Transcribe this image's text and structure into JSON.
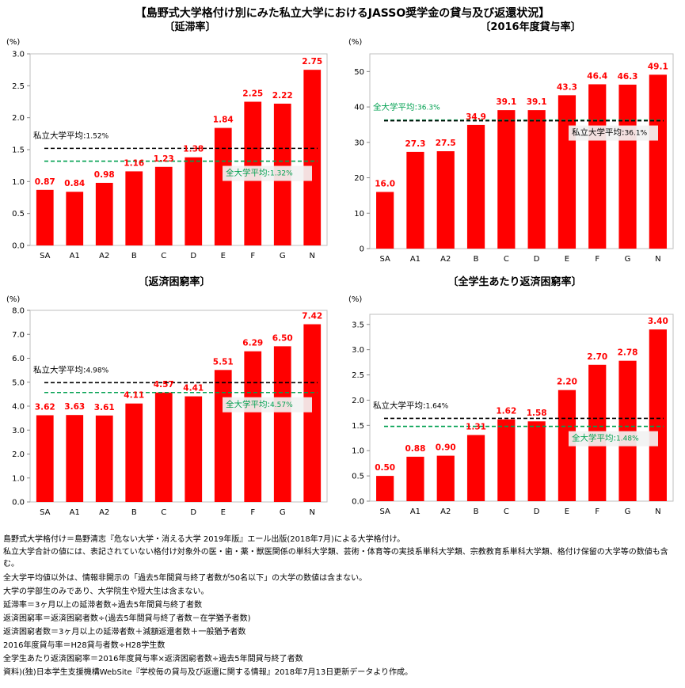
{
  "main_title": "【島野式大学格付け別にみた私立大学におけるJASSO奨学金の貸与及び返還状況】",
  "unit_label": "(%)",
  "notes": [
    "島野式大学格付け＝島野清志『危ない大学・消える大学 2019年版』エール出版(2018年7月)による大学格付け。",
    "私立大学合計の値には、表記されていない格付け対象外の医・歯・薬・獣医関係の単科大学類、芸術・体育等の実技系単科大学類、宗教教育系単科大学類、格付け保留の大学等の数値も含む。",
    "全大学平均値以外は、情報非開示の「過去5年間貸与終了者数が50名以下」の大学の数値は含まない。",
    "大学の学部生のみであり、大学院生や短大生は含まない。",
    "延滞率＝3ヶ月以上の延滞者数÷過去5年間貸与終了者数",
    "返済困窮率＝返済困窮者数÷(過去5年間貸与終了者数－在学猶予者数)",
    "返済困窮者数＝3ヶ月以上の延滞者数＋減額返還者数＋一般猶予者数",
    "2016年度貸与率＝H28貸与者数÷H28学生数",
    "全学生あたり返済困窮率＝2016年度貸与率×返済困窮者数÷過去5年間貸与終了者数",
    "資料)(独)日本学生支援機構WebSite『学校毎の貸与及び返還に関する情報』2018年7月13日更新データより作成。"
  ],
  "chart_data": [
    {
      "type": "bar",
      "title": "〔延滞率〕",
      "categories": [
        "SA",
        "A1",
        "A2",
        "B",
        "C",
        "D",
        "E",
        "F",
        "G",
        "N"
      ],
      "values": [
        0.87,
        0.84,
        0.98,
        1.16,
        1.23,
        1.38,
        1.84,
        2.25,
        2.22,
        2.75
      ],
      "value_labels": [
        "0.87",
        "0.84",
        "0.98",
        "1.16",
        "1.23",
        "1.38",
        "1.84",
        "2.25",
        "2.22",
        "2.75"
      ],
      "ylim": [
        0,
        3.0
      ],
      "yticks": [
        "0.0",
        "0.5",
        "1.0",
        "1.5",
        "2.0",
        "2.5",
        "3.0"
      ],
      "bar_color": "#ff0000",
      "reference_lines": [
        {
          "label": "私立大学平均",
          "value_text": "1.52%",
          "value": 1.52,
          "color": "#000000",
          "label_color": "#000000",
          "label_box": false,
          "label_pos": "upper-left"
        },
        {
          "label": "全大学平均",
          "value_text": "1.32%",
          "value": 1.32,
          "color": "#00a050",
          "label_color": "#00a050",
          "label_box": true,
          "label_pos": "lower-right"
        }
      ]
    },
    {
      "type": "bar",
      "title": "〔2016年度貸与率〕",
      "categories": [
        "SA",
        "A1",
        "A2",
        "B",
        "C",
        "D",
        "E",
        "F",
        "G",
        "N"
      ],
      "values": [
        16.0,
        27.3,
        27.5,
        34.9,
        39.1,
        39.1,
        43.3,
        46.4,
        46.3,
        49.1
      ],
      "value_labels": [
        "16.0",
        "27.3",
        "27.5",
        "34.9",
        "39.1",
        "39.1",
        "43.3",
        "46.4",
        "46.3",
        "49.1"
      ],
      "ylim": [
        0,
        55
      ],
      "yticks": [
        "0",
        "10",
        "20",
        "30",
        "40",
        "50"
      ],
      "bar_color": "#ff0000",
      "reference_lines": [
        {
          "label": "全大学平均",
          "value_text": "36.3%",
          "value": 36.3,
          "color": "#00a050",
          "label_color": "#00a050",
          "label_box": false,
          "label_pos": "upper-left"
        },
        {
          "label": "私立大学平均",
          "value_text": "36.1%",
          "value": 36.1,
          "color": "#000000",
          "label_color": "#000000",
          "label_box": true,
          "label_pos": "lower-right"
        }
      ]
    },
    {
      "type": "bar",
      "title": "〔返済困窮率〕",
      "categories": [
        "SA",
        "A1",
        "A2",
        "B",
        "C",
        "D",
        "E",
        "F",
        "G",
        "N"
      ],
      "values": [
        3.62,
        3.63,
        3.61,
        4.11,
        4.57,
        4.41,
        5.51,
        6.29,
        6.5,
        7.42
      ],
      "value_labels": [
        "3.62",
        "3.63",
        "3.61",
        "4.11",
        "4.57",
        "4.41",
        "5.51",
        "6.29",
        "6.50",
        "7.42"
      ],
      "ylim": [
        0,
        8.0
      ],
      "yticks": [
        "0.0",
        "1.0",
        "2.0",
        "3.0",
        "4.0",
        "5.0",
        "6.0",
        "7.0",
        "8.0"
      ],
      "bar_color": "#ff0000",
      "reference_lines": [
        {
          "label": "私立大学平均",
          "value_text": "4.98%",
          "value": 4.98,
          "color": "#000000",
          "label_color": "#000000",
          "label_box": false,
          "label_pos": "upper-left"
        },
        {
          "label": "全大学平均",
          "value_text": "4.57%",
          "value": 4.57,
          "color": "#00a050",
          "label_color": "#00a050",
          "label_box": true,
          "label_pos": "lower-right"
        }
      ]
    },
    {
      "type": "bar",
      "title": "〔全学生あたり返済困窮率〕",
      "categories": [
        "SA",
        "A1",
        "A2",
        "B",
        "C",
        "D",
        "E",
        "F",
        "G",
        "N"
      ],
      "values": [
        0.5,
        0.88,
        0.9,
        1.31,
        1.62,
        1.58,
        2.2,
        2.7,
        2.78,
        3.4
      ],
      "value_labels": [
        "0.50",
        "0.88",
        "0.90",
        "1.31",
        "1.62",
        "1.58",
        "2.20",
        "2.70",
        "2.78",
        "3.40"
      ],
      "ylim": [
        0,
        3.7
      ],
      "yticks": [
        "0.0",
        "0.5",
        "1.0",
        "1.5",
        "2.0",
        "2.5",
        "3.0",
        "3.5"
      ],
      "bar_color": "#ff0000",
      "reference_lines": [
        {
          "label": "私立大学平均",
          "value_text": "1.64%",
          "value": 1.64,
          "color": "#000000",
          "label_color": "#000000",
          "label_box": false,
          "label_pos": "upper-left"
        },
        {
          "label": "全大学平均",
          "value_text": "1.48%",
          "value": 1.48,
          "color": "#00a050",
          "label_color": "#00a050",
          "label_box": true,
          "label_pos": "lower-right"
        }
      ]
    }
  ]
}
